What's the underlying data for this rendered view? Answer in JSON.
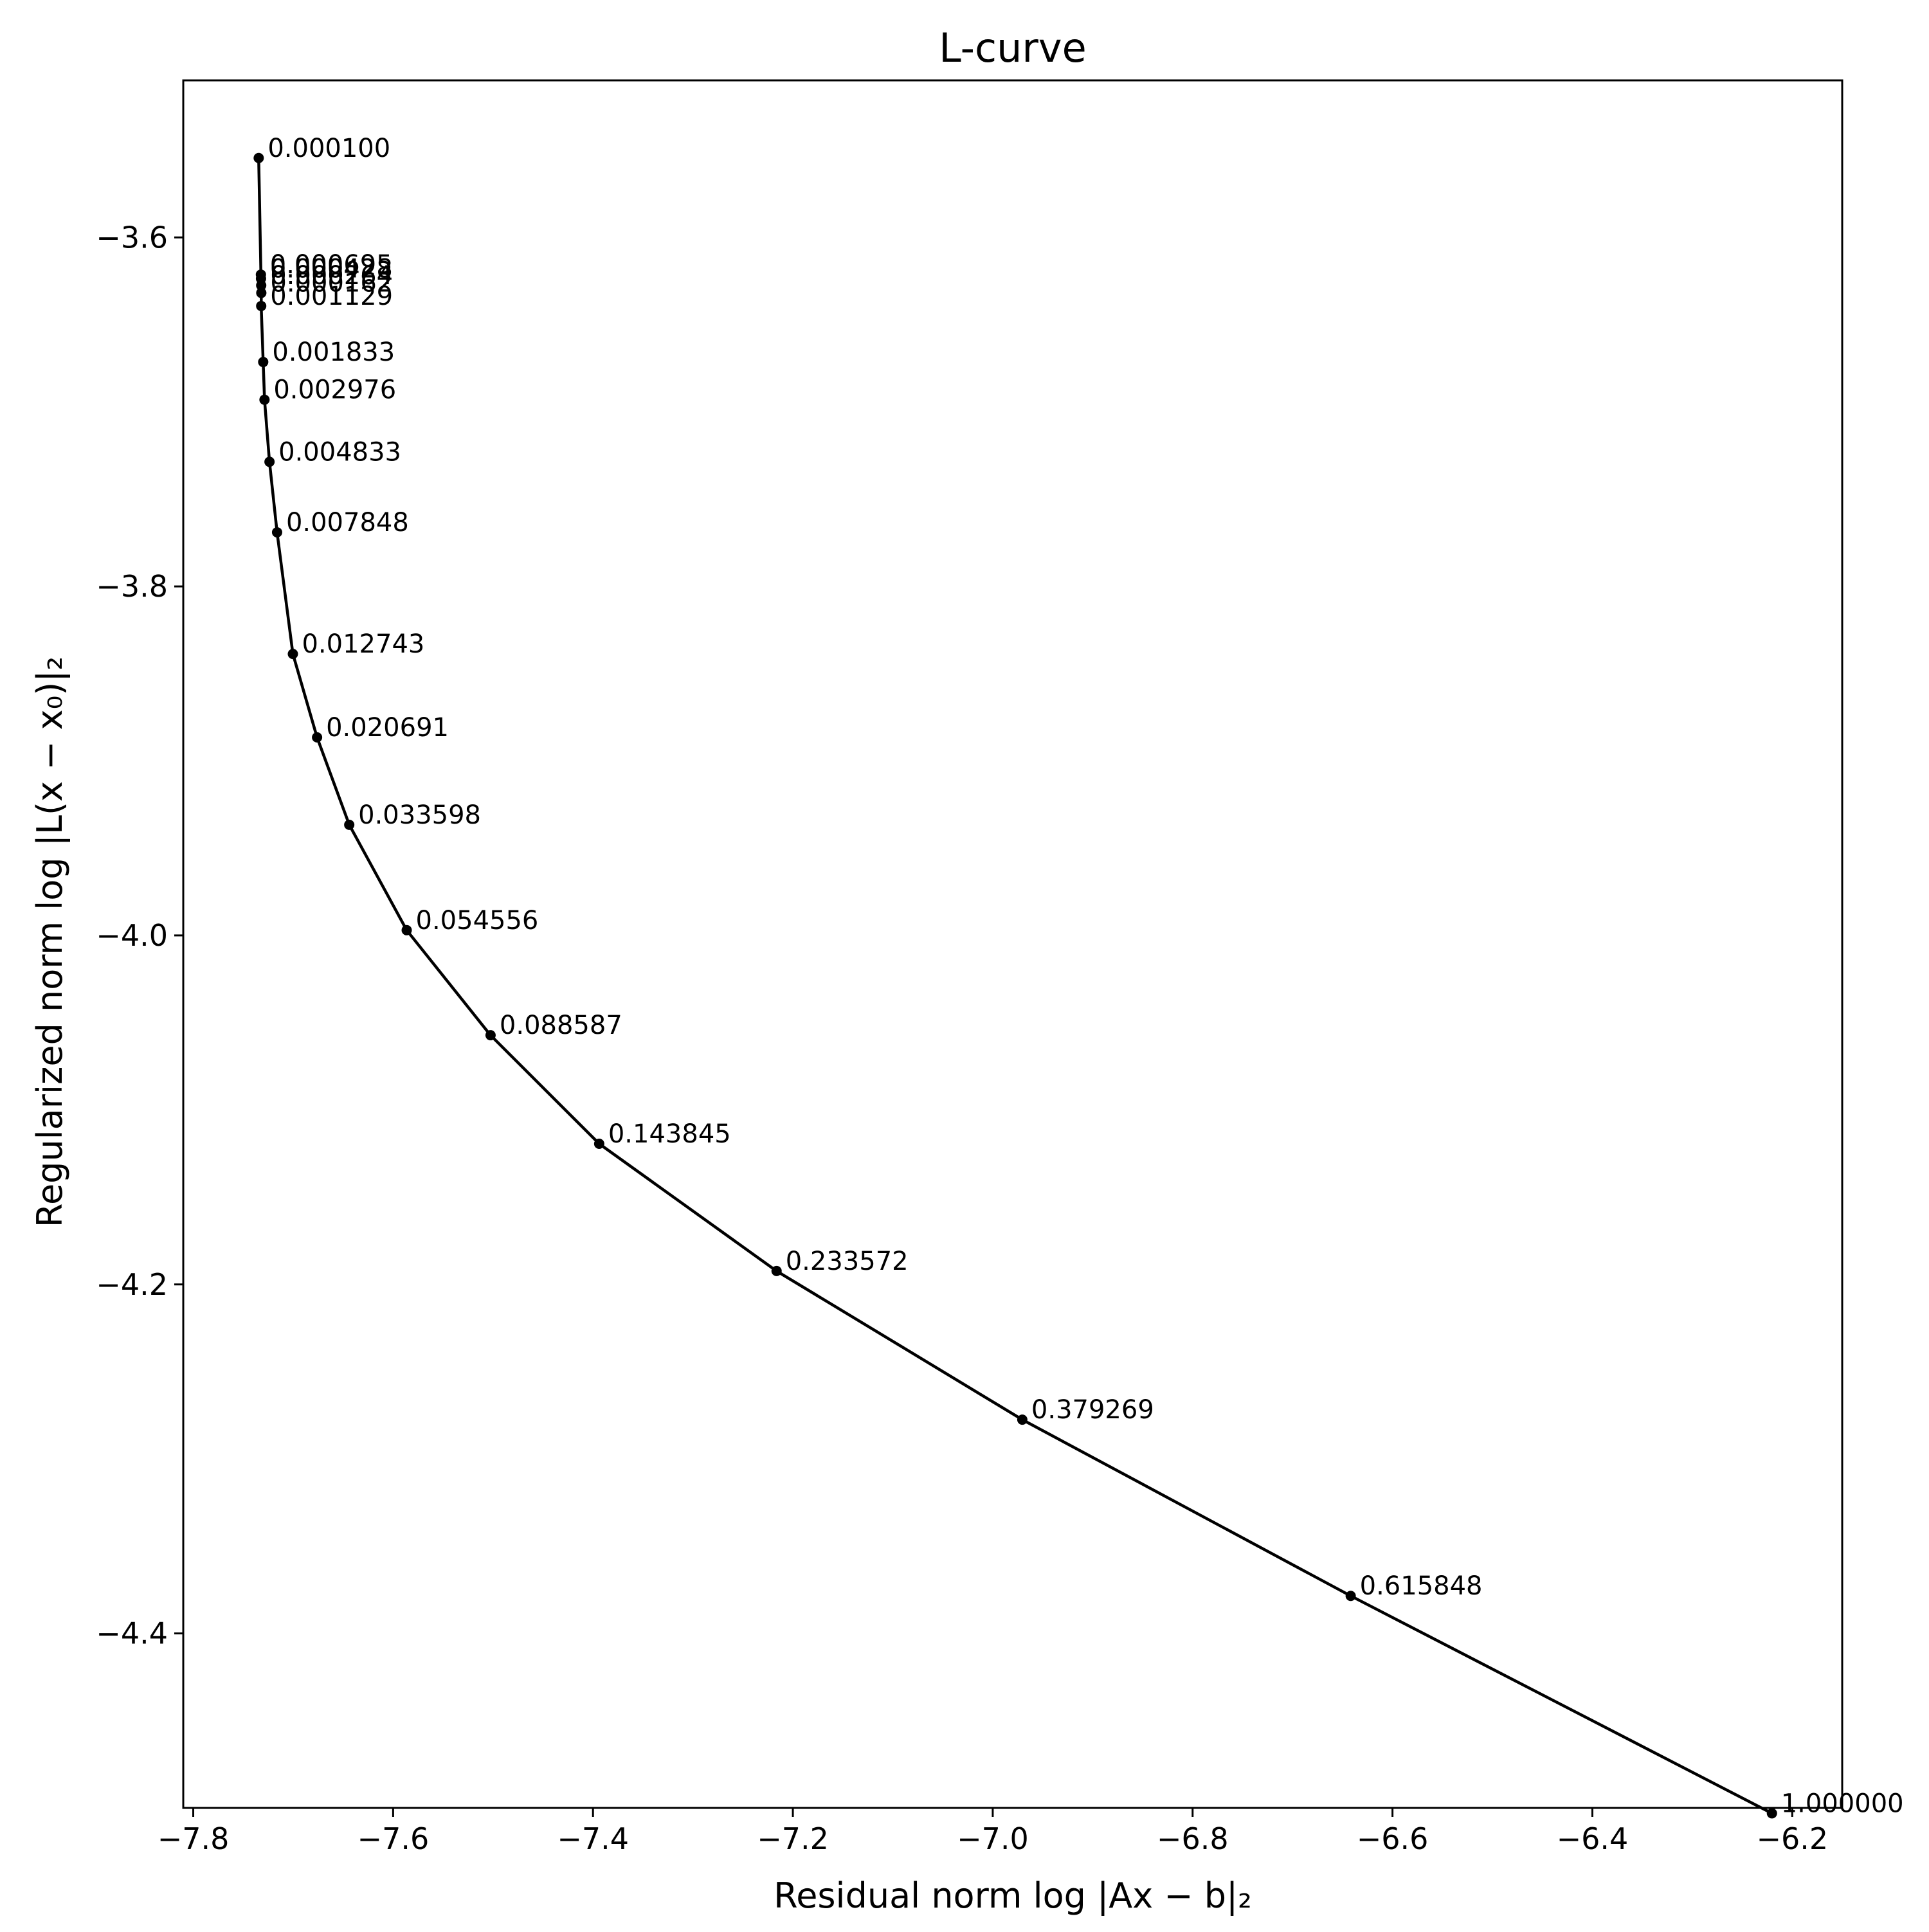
{
  "chart_data": {
    "type": "line",
    "title": "L-curve",
    "xlabel": "Residual norm log |Ax − b|₂",
    "ylabel": "Regularized norm log |L(x − x₀)|₂",
    "xlim": [
      -7.81,
      -6.15
    ],
    "ylim": [
      -4.5,
      -3.51
    ],
    "xticks": [
      -7.8,
      -7.6,
      -7.4,
      -7.2,
      -7.0,
      -6.8,
      -6.6,
      -6.4,
      -6.2
    ],
    "xtick_labels": [
      "−7.8",
      "−7.6",
      "−7.4",
      "−7.2",
      "−7.0",
      "−6.8",
      "−6.6",
      "−6.4",
      "−6.2"
    ],
    "yticks": [
      -3.6,
      -3.8,
      -4.0,
      -4.2,
      -4.4
    ],
    "ytick_labels": [
      "−3.6",
      "−3.8",
      "−4.0",
      "−4.2",
      "−4.4"
    ],
    "grid": false,
    "line_color": "#000000",
    "points": [
      {
        "x": -7.7345,
        "y": -3.5545,
        "label": "0.000100"
      },
      {
        "x": -7.7323,
        "y": -3.6213,
        "label": "0.000695"
      },
      {
        "x": -7.7322,
        "y": -3.6236,
        "label": "0.000428"
      },
      {
        "x": -7.732,
        "y": -3.6275,
        "label": "0.000264"
      },
      {
        "x": -7.7319,
        "y": -3.6318,
        "label": "0.000162"
      },
      {
        "x": -7.732,
        "y": -3.6393,
        "label": "0.001129"
      },
      {
        "x": -7.73,
        "y": -3.6714,
        "label": "0.001833"
      },
      {
        "x": -7.7287,
        "y": -3.693,
        "label": "0.002976"
      },
      {
        "x": -7.7237,
        "y": -3.7286,
        "label": "0.004833"
      },
      {
        "x": -7.7161,
        "y": -3.769,
        "label": "0.007848"
      },
      {
        "x": -7.7003,
        "y": -3.8387,
        "label": "0.012743"
      },
      {
        "x": -7.6761,
        "y": -3.8865,
        "label": "0.020691"
      },
      {
        "x": -7.6439,
        "y": -3.9366,
        "label": "0.033598"
      },
      {
        "x": -7.5864,
        "y": -3.997,
        "label": "0.054556"
      },
      {
        "x": -7.5025,
        "y": -4.0572,
        "label": "0.088587"
      },
      {
        "x": -7.3938,
        "y": -4.1194,
        "label": "0.143845"
      },
      {
        "x": -7.2163,
        "y": -4.1923,
        "label": "0.233572"
      },
      {
        "x": -6.9704,
        "y": -4.2775,
        "label": "0.379269"
      },
      {
        "x": -6.6418,
        "y": -4.3785,
        "label": "0.615848"
      },
      {
        "x": -6.2203,
        "y": -4.5031,
        "label": "1.000000"
      }
    ]
  }
}
